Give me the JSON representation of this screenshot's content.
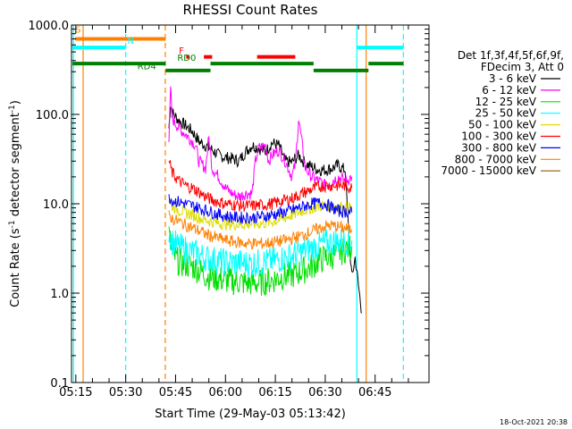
{
  "chart_data": {
    "type": "line",
    "title": "RHESSI Count Rates",
    "xlabel": "Start Time (29-May-03 05:13:42)",
    "ylabel_parts": [
      "Count Rate (s",
      "-1",
      " detector segment",
      "-1",
      ")"
    ],
    "x_unit": "minutes",
    "xlim": [
      313.7,
      421.2
    ],
    "ylim": [
      0.1,
      1000
    ],
    "yscale": "log",
    "y_ticks": [
      {
        "value": 1000,
        "label": "1000.0"
      },
      {
        "value": 100,
        "label": "100.0"
      },
      {
        "value": 10,
        "label": "10.0"
      },
      {
        "value": 1,
        "label": "1.0"
      },
      {
        "value": 0.1,
        "label": "0.1"
      }
    ],
    "x_ticks": [
      {
        "value": 315,
        "label": "05:15"
      },
      {
        "value": 330,
        "label": "05:30"
      },
      {
        "value": 345,
        "label": "05:45"
      },
      {
        "value": 360,
        "label": "06:00"
      },
      {
        "value": 375,
        "label": "06:15"
      },
      {
        "value": 390,
        "label": "06:30"
      },
      {
        "value": 405,
        "label": "06:45"
      }
    ],
    "legend_header": [
      "Det 1f,3f,4f,5f,6f,9f,",
      "FDecim 3, Att 0"
    ],
    "series": [
      {
        "name": "3 - 6 keV",
        "color": "#000000",
        "x": [
          343,
          343.5,
          344,
          346,
          348,
          350,
          352,
          354,
          356,
          358,
          360,
          362,
          364,
          366,
          368,
          370,
          372,
          374,
          376,
          378,
          380,
          382,
          384,
          386,
          388,
          390,
          392,
          394,
          395,
          396,
          397,
          398,
          399,
          400,
          401
        ],
        "y": [
          70,
          130,
          105,
          85,
          75,
          65,
          50,
          45,
          40,
          35,
          33,
          32,
          30,
          38,
          45,
          42,
          38,
          48,
          45,
          30,
          29,
          35,
          28,
          26,
          24,
          24,
          25,
          27,
          25,
          24,
          5,
          1.5,
          2.5,
          1.2,
          0.6
        ]
      },
      {
        "name": "6 - 12 keV",
        "color": "#ff00ff",
        "x": [
          343,
          343.5,
          344,
          346,
          348,
          350,
          351,
          352,
          354,
          355,
          356,
          358,
          360,
          362,
          364,
          366,
          368,
          369,
          370,
          372,
          373,
          374,
          376,
          378,
          380,
          381,
          382,
          384,
          386,
          388,
          390,
          392,
          394,
          396,
          398
        ],
        "y": [
          55,
          190,
          90,
          70,
          60,
          50,
          45,
          30,
          25,
          55,
          25,
          20,
          15,
          13,
          12,
          13,
          13,
          30,
          42,
          45,
          30,
          35,
          40,
          30,
          20,
          28,
          90,
          25,
          20,
          18,
          16,
          18,
          20,
          18,
          20
        ]
      },
      {
        "name": "12 - 25 keV",
        "color": "#00e000",
        "x": [
          343,
          344,
          346,
          348,
          350,
          352,
          354,
          356,
          358,
          360,
          362,
          364,
          366,
          368,
          370,
          372,
          374,
          376,
          378,
          380,
          382,
          384,
          386,
          388,
          390,
          392,
          394,
          396,
          398
        ],
        "y": [
          4.5,
          2.8,
          2.2,
          2.1,
          2,
          1.8,
          1.6,
          1.5,
          1.45,
          1.4,
          1.35,
          1.35,
          1.3,
          1.3,
          1.3,
          1.35,
          1.4,
          1.5,
          1.55,
          1.6,
          1.7,
          1.85,
          2,
          2.3,
          2.5,
          2.6,
          2.8,
          3.1,
          3.3
        ]
      },
      {
        "name": "25 - 50 keV",
        "color": "#00ffff",
        "x": [
          343,
          344,
          346,
          348,
          350,
          352,
          354,
          356,
          358,
          360,
          362,
          364,
          366,
          368,
          370,
          372,
          374,
          376,
          378,
          380,
          382,
          384,
          386,
          388,
          390,
          392,
          394,
          396,
          398
        ],
        "y": [
          4.8,
          3.8,
          3.3,
          3.1,
          2.9,
          2.7,
          2.5,
          2.4,
          2.3,
          2.2,
          2.2,
          2.2,
          2.15,
          2.15,
          2.2,
          2.25,
          2.3,
          2.4,
          2.5,
          2.6,
          2.8,
          3,
          3.2,
          3.4,
          3.6,
          3.7,
          3.8,
          3.8,
          3.9
        ]
      },
      {
        "name": "50 - 100 keV",
        "color": "#dddd00",
        "x": [
          343,
          344,
          346,
          348,
          350,
          352,
          354,
          356,
          358,
          360,
          362,
          364,
          366,
          368,
          370,
          372,
          374,
          376,
          378,
          380,
          382,
          384,
          386,
          388,
          390,
          392,
          394,
          396,
          398
        ],
        "y": [
          11,
          9.5,
          8.5,
          8,
          7.5,
          7,
          6.6,
          6.3,
          6.1,
          6,
          5.9,
          5.9,
          5.9,
          5.9,
          6,
          6.1,
          6.3,
          6.6,
          7,
          7.5,
          8,
          8.6,
          9,
          9.4,
          9.6,
          9.5,
          9.3,
          9,
          9
        ]
      },
      {
        "name": "100 - 300 keV",
        "color": "#ff0000",
        "x": [
          343,
          344,
          346,
          348,
          350,
          352,
          354,
          356,
          358,
          360,
          362,
          364,
          366,
          368,
          370,
          372,
          374,
          376,
          378,
          380,
          382,
          384,
          386,
          388,
          390,
          392,
          394,
          396,
          398
        ],
        "y": [
          30,
          22,
          18,
          16,
          15,
          13.5,
          12,
          11,
          10.5,
          10,
          9.8,
          9.6,
          9.5,
          9.5,
          9.6,
          9.8,
          10,
          10.5,
          11,
          11.5,
          12.5,
          13.5,
          14.5,
          15.5,
          16,
          16,
          16,
          16,
          15
        ]
      },
      {
        "name": "300 - 800 keV",
        "color": "#0000ff",
        "x": [
          343,
          344,
          346,
          348,
          350,
          352,
          354,
          356,
          358,
          360,
          362,
          364,
          366,
          368,
          370,
          372,
          374,
          376,
          378,
          380,
          382,
          384,
          386,
          388,
          390,
          392,
          394,
          396,
          398
        ],
        "y": [
          12,
          11,
          10.5,
          10,
          9.5,
          9,
          8.5,
          8,
          7.6,
          7.3,
          7.1,
          7,
          7,
          7,
          7.1,
          7.3,
          7.5,
          7.8,
          8.1,
          8.5,
          9,
          9.5,
          10,
          10.2,
          10,
          9,
          8.3,
          8.2,
          8
        ]
      },
      {
        "name": "800 - 7000 keV",
        "color": "#ff8000",
        "x": [
          343,
          344,
          346,
          348,
          350,
          352,
          354,
          356,
          358,
          360,
          362,
          364,
          366,
          368,
          370,
          372,
          374,
          376,
          378,
          380,
          382,
          384,
          386,
          388,
          390,
          392,
          394,
          396,
          398
        ],
        "y": [
          7.5,
          6.8,
          6.3,
          5.8,
          5.4,
          5,
          4.6,
          4.3,
          4.1,
          3.9,
          3.8,
          3.7,
          3.6,
          3.6,
          3.6,
          3.6,
          3.7,
          3.8,
          3.9,
          4.1,
          4.3,
          4.6,
          4.9,
          5.3,
          5.6,
          5.7,
          5.5,
          5.3,
          5.1
        ]
      },
      {
        "name": "7000 - 15000 keV",
        "color": "#8b5a00",
        "x": [],
        "y": []
      }
    ],
    "annotations": {
      "bars": [
        {
          "label": "S",
          "color": "#ff8000",
          "y": 700,
          "x1": 314.8,
          "x2": 342
        },
        {
          "label": "N",
          "color": "#00ffff",
          "y": 560,
          "x1": 314,
          "x2": 330
        },
        {
          "label": "N",
          "color": "#00ffff",
          "y": 560,
          "x1": 399.5,
          "x2": 413.5
        },
        {
          "label": "F",
          "color": "#ff0000",
          "y": 440,
          "x1": 348.2,
          "x2": 349.2
        },
        {
          "label": "F",
          "color": "#ff0000",
          "y": 440,
          "x1": 353.5,
          "x2": 356
        },
        {
          "label": "F",
          "color": "#ff0000",
          "y": 440,
          "x1": 369.5,
          "x2": 381
        },
        {
          "label": "RD0",
          "color": "#008000",
          "y": 370,
          "x1": 314,
          "x2": 342
        },
        {
          "label": "RD0",
          "color": "#008000",
          "y": 370,
          "x1": 355.5,
          "x2": 386.5
        },
        {
          "label": "RD0",
          "color": "#008000",
          "y": 370,
          "x1": 403,
          "x2": 413.5
        },
        {
          "label": "RD4",
          "color": "#008000",
          "y": 310,
          "x1": 342,
          "x2": 355.5
        },
        {
          "label": "RD4",
          "color": "#008000",
          "y": 310,
          "x1": 386.5,
          "x2": 403
        }
      ],
      "bar_labels": [
        {
          "text": "S",
          "color": "#ff8000",
          "x": 314.8,
          "y": 820
        },
        {
          "text": "N",
          "color": "#00ffff",
          "x": 330.5,
          "y": 620
        },
        {
          "text": "F",
          "color": "#ff0000",
          "x": 346,
          "y": 480
        },
        {
          "text": "RD0",
          "color": "#008000",
          "x": 345.5,
          "y": 400
        },
        {
          "text": "RD4",
          "color": "#008000",
          "x": 333.5,
          "y": 320
        }
      ],
      "vlines": [
        {
          "x": 314.3,
          "color": "#00ffff",
          "style": "solid"
        },
        {
          "x": 317.2,
          "color": "#ff8000",
          "style": "solid"
        },
        {
          "x": 330,
          "color": "#00ffff",
          "style": "dashed"
        },
        {
          "x": 341.9,
          "color": "#ff8000",
          "style": "dashed"
        },
        {
          "x": 399.5,
          "color": "#00ffff",
          "style": "solid"
        },
        {
          "x": 402.3,
          "color": "#ff8000",
          "style": "solid"
        },
        {
          "x": 413.5,
          "color": "#00ffff",
          "style": "dashed"
        }
      ]
    },
    "grid": false,
    "legend_position": "right"
  },
  "timestamp": "18-Oct-2021 20:38"
}
